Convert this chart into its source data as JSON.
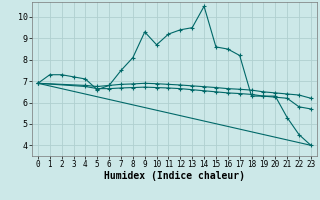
{
  "xlabel": "Humidex (Indice chaleur)",
  "bg_color": "#cce8e8",
  "grid_color": "#b0d0d0",
  "line_color": "#006868",
  "xlim": [
    -0.5,
    23.5
  ],
  "ylim": [
    3.5,
    10.7
  ],
  "xticks": [
    0,
    1,
    2,
    3,
    4,
    5,
    6,
    7,
    8,
    9,
    10,
    11,
    12,
    13,
    14,
    15,
    16,
    17,
    18,
    19,
    20,
    21,
    22,
    23
  ],
  "yticks": [
    4,
    5,
    6,
    7,
    8,
    9,
    10
  ],
  "line1_x": [
    0,
    1,
    2,
    3,
    4,
    5,
    6,
    7,
    8,
    9,
    10,
    11,
    12,
    13,
    14,
    15,
    16,
    17,
    18,
    19,
    20,
    21,
    22,
    23
  ],
  "line1_y": [
    6.9,
    7.3,
    7.3,
    7.2,
    7.1,
    6.6,
    6.8,
    7.5,
    8.1,
    9.3,
    8.7,
    9.2,
    9.4,
    9.5,
    10.5,
    8.6,
    8.5,
    8.2,
    6.3,
    6.3,
    6.3,
    5.3,
    4.5,
    4.0
  ],
  "line2_x": [
    0,
    4,
    5,
    6,
    7,
    8,
    9,
    10,
    11,
    12,
    13,
    14,
    15,
    16,
    17,
    18,
    19,
    20,
    21,
    22,
    23
  ],
  "line2_y": [
    6.9,
    6.8,
    6.75,
    6.8,
    6.85,
    6.87,
    6.9,
    6.88,
    6.85,
    6.82,
    6.78,
    6.74,
    6.7,
    6.65,
    6.62,
    6.58,
    6.5,
    6.45,
    6.4,
    6.35,
    6.2
  ],
  "line3_x": [
    0,
    4,
    5,
    6,
    7,
    8,
    9,
    10,
    11,
    12,
    13,
    14,
    15,
    16,
    17,
    18,
    19,
    20,
    21,
    22,
    23
  ],
  "line3_y": [
    6.9,
    6.75,
    6.65,
    6.65,
    6.68,
    6.7,
    6.72,
    6.7,
    6.68,
    6.65,
    6.6,
    6.55,
    6.5,
    6.45,
    6.42,
    6.38,
    6.3,
    6.25,
    6.2,
    5.8,
    5.7
  ],
  "line4_x": [
    0,
    23
  ],
  "line4_y": [
    6.9,
    4.0
  ],
  "xlabel_fontsize": 7,
  "tick_fontsize": 5.5
}
